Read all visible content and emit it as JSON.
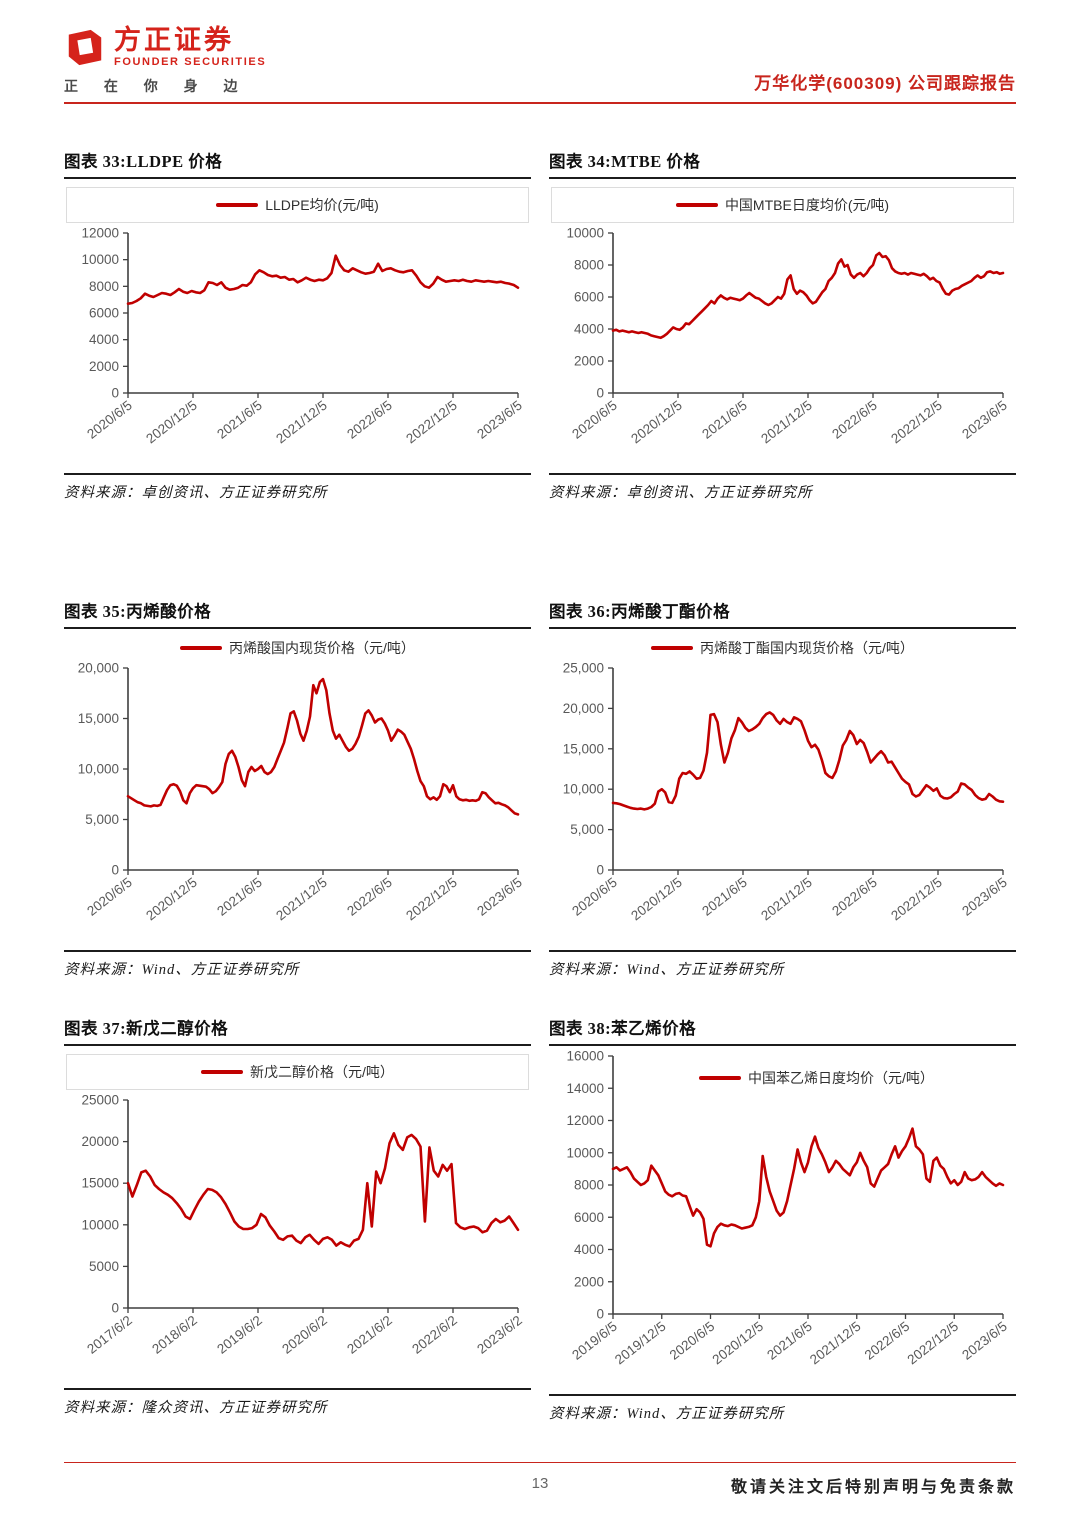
{
  "header": {
    "brand_cn": "方正证券",
    "brand_en": "FOUNDER SECURITIES",
    "slogan": "正 在 你 身 边",
    "report_tag": "万华化学(600309) 公司跟踪报告"
  },
  "footer": {
    "page_number": "13",
    "disclaimer": "敬请关注文后特别声明与免责条款"
  },
  "colors": {
    "series_red": "#c00000",
    "brand_red": "#d5231b",
    "rule_red": "#c8251d",
    "axis": "#3f3f3f",
    "tick_label": "#595959"
  },
  "chart_data": [
    {
      "type": "line",
      "title": "图表 33:LLDPE 价格",
      "legend": "LLDPE均价(元/吨)",
      "source": "资料来源：卓创资讯、方正证券研究所",
      "ylim": [
        0,
        12000
      ],
      "yticks": [
        0,
        2000,
        4000,
        6000,
        8000,
        10000,
        12000
      ],
      "ytick_labels": [
        "0",
        "2000",
        "4000",
        "6000",
        "8000",
        "10000",
        "12000"
      ],
      "x_labels": [
        "2020/6/5",
        "2020/12/5",
        "2021/6/5",
        "2021/12/5",
        "2022/6/5",
        "2022/12/5",
        "2023/6/5"
      ],
      "values": [
        6700,
        6750,
        6900,
        7100,
        7450,
        7300,
        7200,
        7350,
        7500,
        7450,
        7350,
        7550,
        7800,
        7600,
        7500,
        7650,
        7550,
        7500,
        7700,
        8300,
        8250,
        8100,
        8300,
        7900,
        7750,
        7800,
        7900,
        8100,
        8050,
        8300,
        8900,
        9200,
        9050,
        8850,
        8750,
        8800,
        8650,
        8700,
        8500,
        8550,
        8300,
        8450,
        8650,
        8500,
        8400,
        8500,
        8450,
        8600,
        9000,
        10300,
        9600,
        9200,
        9100,
        9350,
        9200,
        9050,
        8950,
        9000,
        9100,
        9700,
        9150,
        9300,
        9350,
        9200,
        9100,
        9050,
        9150,
        9200,
        8800,
        8300,
        8000,
        7900,
        8200,
        8700,
        8500,
        8350,
        8400,
        8450,
        8400,
        8500,
        8400,
        8350,
        8450,
        8400,
        8350,
        8400,
        8350,
        8300,
        8350,
        8250,
        8200,
        8100,
        7900
      ]
    },
    {
      "type": "line",
      "title": "图表 34:MTBE 价格",
      "legend": "中国MTBE日度均价(元/吨)",
      "source": "资料来源：卓创资讯、方正证券研究所",
      "ylim": [
        0,
        10000
      ],
      "yticks": [
        0,
        2000,
        4000,
        6000,
        8000,
        10000
      ],
      "ytick_labels": [
        "0",
        "2000",
        "4000",
        "6000",
        "8000",
        "10000"
      ],
      "x_labels": [
        "2020/6/5",
        "2020/12/5",
        "2021/6/5",
        "2021/12/5",
        "2022/6/5",
        "2022/12/5",
        "2023/6/5"
      ],
      "values": [
        3900,
        3950,
        3850,
        3900,
        3850,
        3800,
        3850,
        3800,
        3750,
        3800,
        3750,
        3700,
        3600,
        3550,
        3500,
        3450,
        3550,
        3700,
        3900,
        4100,
        4000,
        3950,
        4100,
        4350,
        4300,
        4500,
        4700,
        4900,
        5100,
        5300,
        5500,
        5750,
        5600,
        5900,
        6100,
        5950,
        5850,
        5950,
        5900,
        5850,
        5800,
        5900,
        6100,
        6250,
        6100,
        5950,
        5900,
        5750,
        5600,
        5500,
        5600,
        5800,
        6000,
        5900,
        6200,
        7100,
        7350,
        6500,
        6200,
        6400,
        6300,
        6100,
        5800,
        5600,
        5700,
        6000,
        6300,
        6500,
        7000,
        7200,
        7500,
        8100,
        8350,
        7900,
        8000,
        7400,
        7200,
        7400,
        7500,
        7300,
        7500,
        7800,
        8000,
        8600,
        8750,
        8500,
        8550,
        8300,
        7800,
        7600,
        7500,
        7450,
        7500,
        7400,
        7500,
        7450,
        7400,
        7350,
        7450,
        7300,
        7100,
        7200,
        7000,
        6900,
        6500,
        6200,
        6150,
        6400,
        6500,
        6550,
        6700,
        6800,
        6900,
        7000,
        7200,
        7350,
        7200,
        7300,
        7550,
        7600,
        7500,
        7550,
        7450,
        7500
      ]
    },
    {
      "type": "line",
      "title": "图表 35:丙烯酸价格",
      "legend": "丙烯酸国内现货价格（元/吨）",
      "source": "资料来源：Wind、方正证券研究所",
      "ylim": [
        0,
        20000
      ],
      "yticks": [
        0,
        5000,
        10000,
        15000,
        20000
      ],
      "ytick_labels": [
        "0",
        "5,000",
        "10,000",
        "15,000",
        "20,000"
      ],
      "x_labels": [
        "2020/6/5",
        "2020/12/5",
        "2021/6/5",
        "2021/12/5",
        "2022/6/5",
        "2022/12/5",
        "2023/6/5"
      ],
      "values": [
        7300,
        7100,
        6900,
        6700,
        6600,
        6400,
        6350,
        6300,
        6400,
        6350,
        6450,
        7200,
        7900,
        8400,
        8500,
        8350,
        7800,
        6900,
        6600,
        7600,
        8100,
        8400,
        8350,
        8300,
        8250,
        8000,
        7600,
        7800,
        8200,
        8700,
        10500,
        11500,
        11800,
        11200,
        10200,
        8900,
        8300,
        9700,
        10200,
        9800,
        10000,
        10300,
        9700,
        9500,
        9700,
        10200,
        11000,
        11800,
        12600,
        14000,
        15500,
        15700,
        14800,
        13500,
        12800,
        13800,
        15200,
        18300,
        17500,
        18600,
        18900,
        17800,
        15500,
        13800,
        13000,
        13400,
        12800,
        12200,
        11800,
        12000,
        12500,
        13200,
        14300,
        15500,
        15800,
        15300,
        14600,
        14900,
        15000,
        14500,
        13800,
        12800,
        13300,
        13900,
        13700,
        13400,
        12700,
        12000,
        11000,
        9800,
        8800,
        8300,
        7300,
        7000,
        7200,
        6950,
        7300,
        8500,
        8300,
        7700,
        8400,
        7300,
        7000,
        6900,
        6950,
        6850,
        6900,
        6850,
        7000,
        7700,
        7600,
        7200,
        6900,
        6600,
        6650,
        6500,
        6400,
        6200,
        5900,
        5600,
        5500
      ]
    },
    {
      "type": "line",
      "title": "图表 36:丙烯酸丁酯价格",
      "legend": "丙烯酸丁酯国内现货价格（元/吨）",
      "source": "资料来源：Wind、方正证券研究所",
      "ylim": [
        0,
        25000
      ],
      "yticks": [
        0,
        5000,
        10000,
        15000,
        20000,
        25000
      ],
      "ytick_labels": [
        "0",
        "5,000",
        "10,000",
        "15,000",
        "20,000",
        "25,000"
      ],
      "x_labels": [
        "2020/6/5",
        "2020/12/5",
        "2021/6/5",
        "2021/12/5",
        "2022/6/5",
        "2022/12/5",
        "2023/6/5"
      ],
      "values": [
        8300,
        8250,
        8150,
        8000,
        7850,
        7700,
        7600,
        7550,
        7600,
        7500,
        7600,
        7800,
        8200,
        9700,
        10000,
        9600,
        8400,
        8300,
        9200,
        11300,
        12000,
        11900,
        12200,
        11800,
        11300,
        11400,
        12300,
        14500,
        19200,
        19300,
        18300,
        15500,
        13300,
        14500,
        16300,
        17300,
        18800,
        18300,
        17600,
        17200,
        17400,
        17700,
        18100,
        18800,
        19300,
        19500,
        19200,
        18500,
        18100,
        18700,
        18300,
        18100,
        18900,
        18700,
        18400,
        17300,
        16000,
        15200,
        15500,
        14900,
        13600,
        12000,
        11600,
        11400,
        12200,
        13600,
        15400,
        16100,
        17200,
        16700,
        15600,
        16100,
        15700,
        14600,
        13300,
        13800,
        14300,
        14700,
        14200,
        13300,
        13400,
        12700,
        12000,
        11300,
        10900,
        10600,
        9400,
        9100,
        9300,
        9900,
        10500,
        10200,
        9800,
        10100,
        9200,
        8900,
        8850,
        9000,
        9400,
        9700,
        10700,
        10600,
        10200,
        9900,
        9300,
        8900,
        8700,
        8800,
        9400,
        9100,
        8700,
        8500,
        8450
      ]
    },
    {
      "type": "line",
      "title": "图表 37:新戊二醇价格",
      "legend": "新戊二醇价格（元/吨）",
      "source": "资料来源：隆众资讯、方正证券研究所",
      "ylim": [
        0,
        25000
      ],
      "yticks": [
        0,
        5000,
        10000,
        15000,
        20000,
        25000
      ],
      "ytick_labels": [
        "0",
        "5000",
        "10000",
        "15000",
        "20000",
        "25000"
      ],
      "x_labels": [
        "2017/6/2",
        "2018/6/2",
        "2019/6/2",
        "2020/6/2",
        "2021/6/2",
        "2022/6/2",
        "2023/6/2"
      ],
      "values": [
        15000,
        13400,
        14800,
        16300,
        16500,
        15800,
        14800,
        14300,
        13900,
        13600,
        13200,
        12600,
        11900,
        11000,
        10700,
        11800,
        12800,
        13600,
        14300,
        14200,
        13900,
        13300,
        12500,
        11500,
        10400,
        9800,
        9500,
        9500,
        9600,
        10000,
        11300,
        10900,
        9900,
        9200,
        8400,
        8200,
        8600,
        8700,
        8100,
        7800,
        8500,
        8800,
        8200,
        7700,
        8300,
        8500,
        8200,
        7500,
        7900,
        7600,
        7400,
        8100,
        8300,
        9400,
        15000,
        9800,
        16400,
        15000,
        16800,
        19800,
        21000,
        19600,
        19000,
        20500,
        20800,
        20300,
        19400,
        10400,
        19300,
        16500,
        15800,
        17200,
        16500,
        17300,
        10200,
        9700,
        9500,
        9700,
        9800,
        9600,
        9100,
        9300,
        10200,
        10700,
        10300,
        10500,
        11000,
        10200,
        9400
      ]
    },
    {
      "type": "line",
      "title": "图表 38:苯乙烯价格",
      "legend": "中国苯乙烯日度均价（元/吨）",
      "source": "资料来源：Wind、方正证券研究所",
      "ylim": [
        0,
        16000
      ],
      "yticks": [
        0,
        2000,
        4000,
        6000,
        8000,
        10000,
        12000,
        14000,
        16000
      ],
      "ytick_labels": [
        "0",
        "2000",
        "4000",
        "6000",
        "8000",
        "10000",
        "12000",
        "14000",
        "16000"
      ],
      "x_labels": [
        "2019/6/5",
        "2019/12/5",
        "2020/6/5",
        "2020/12/5",
        "2021/6/5",
        "2021/12/5",
        "2022/6/5",
        "2022/12/5",
        "2023/6/5"
      ],
      "values": [
        9000,
        9100,
        8900,
        9000,
        9100,
        8800,
        8400,
        8200,
        8000,
        8100,
        8300,
        9200,
        8900,
        8600,
        8100,
        7600,
        7400,
        7300,
        7450,
        7500,
        7350,
        7300,
        6700,
        6100,
        6500,
        6300,
        5900,
        4300,
        4200,
        5000,
        5400,
        5600,
        5500,
        5450,
        5550,
        5500,
        5400,
        5300,
        5350,
        5400,
        5500,
        6000,
        7000,
        9800,
        8500,
        7600,
        7000,
        6400,
        6100,
        6300,
        7000,
        8000,
        9000,
        10200,
        9400,
        8800,
        9400,
        10400,
        11000,
        10300,
        9900,
        9400,
        8800,
        9100,
        9500,
        9300,
        9000,
        8800,
        8600,
        9100,
        9400,
        10000,
        9500,
        9100,
        8100,
        7900,
        8400,
        8900,
        9100,
        9300,
        9900,
        10400,
        9700,
        10100,
        10400,
        10900,
        11500,
        10400,
        10200,
        9900,
        8400,
        8200,
        9500,
        9700,
        9200,
        9000,
        8500,
        8100,
        8300,
        8000,
        8200,
        8800,
        8400,
        8300,
        8350,
        8500,
        8800,
        8500,
        8300,
        8100,
        7950,
        8100,
        8000
      ]
    }
  ]
}
